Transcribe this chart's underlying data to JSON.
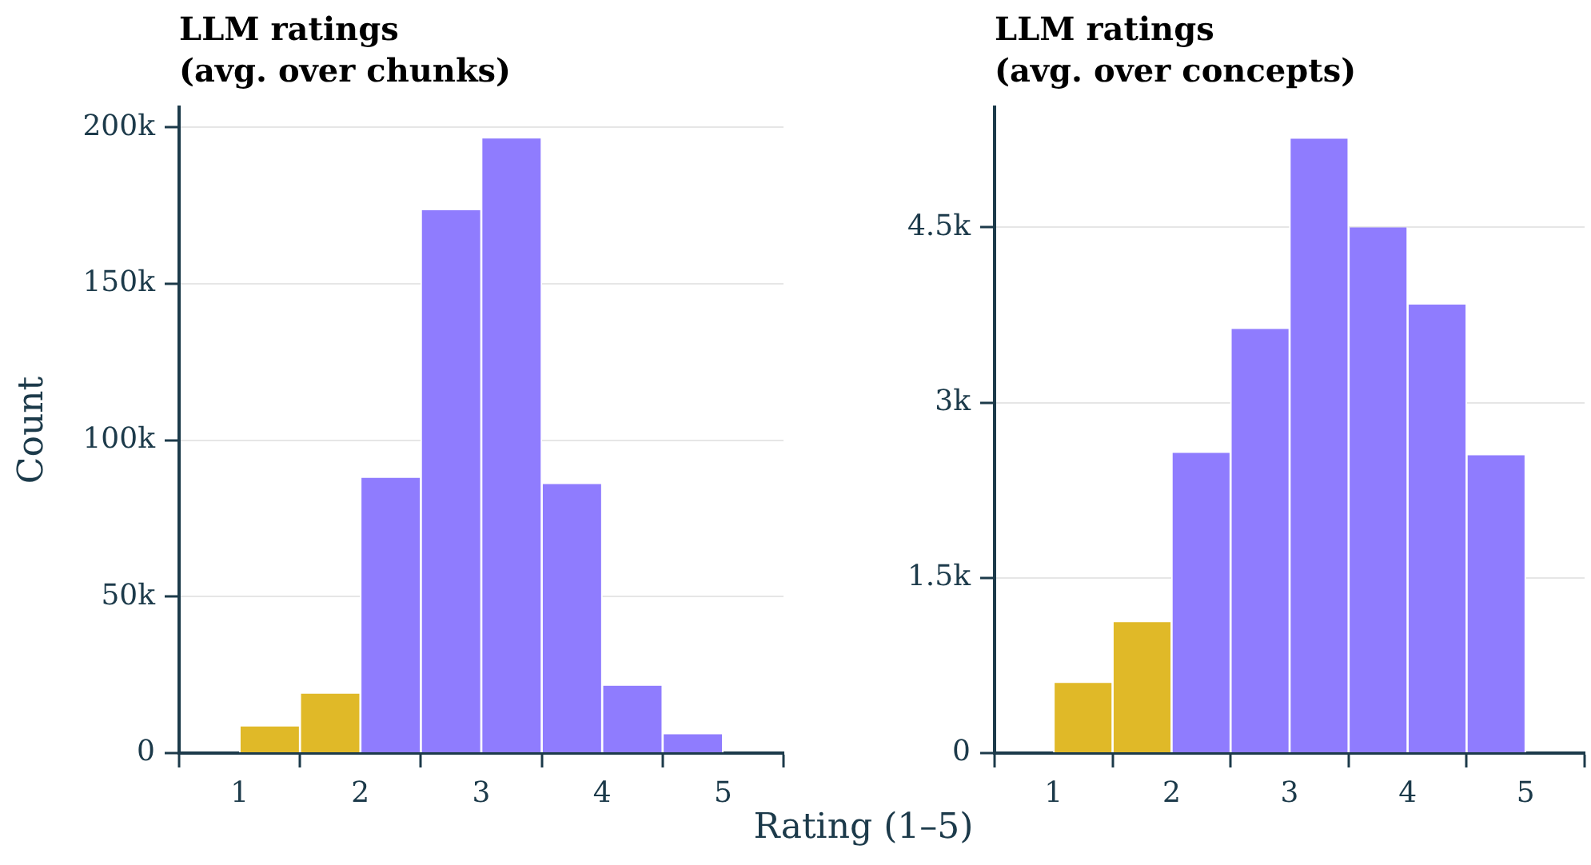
{
  "chart_data": [
    {
      "type": "histogram",
      "title": "LLM ratings\n(avg. over chunks)",
      "xlabel": "Rating (1–5)",
      "ylabel": "Count",
      "bins": [
        1,
        1.5,
        2,
        2.5,
        3,
        3.5,
        4,
        4.5,
        5
      ],
      "values": [
        8500,
        19000,
        88000,
        173500,
        196500,
        86000,
        21500,
        6000
      ],
      "colors": [
        "#e0b928",
        "#e0b928",
        "#8f7cfe",
        "#8f7cfe",
        "#8f7cfe",
        "#8f7cfe",
        "#8f7cfe",
        "#8f7cfe"
      ],
      "xlim": [
        0.5,
        5.5
      ],
      "ylim": [
        0,
        206500
      ],
      "xticks": [
        1,
        2,
        3,
        4,
        5
      ],
      "yticks": [
        0,
        {
          "value": 50000,
          "label": "50k"
        },
        {
          "value": 100000,
          "label": "100k"
        },
        {
          "value": 150000,
          "label": "150k"
        },
        {
          "value": 200000,
          "label": "200k"
        }
      ],
      "grid": "y"
    },
    {
      "type": "histogram",
      "title": "LLM ratings\n(avg. over concepts)",
      "bins": [
        1,
        1.5,
        2,
        2.5,
        3,
        3.5,
        4,
        4.5,
        5
      ],
      "values": [
        600,
        1120,
        2570,
        3630,
        5260,
        4500,
        3840,
        2550
      ],
      "colors": [
        "#e0b928",
        "#e0b928",
        "#8f7cfe",
        "#8f7cfe",
        "#8f7cfe",
        "#8f7cfe",
        "#8f7cfe",
        "#8f7cfe"
      ],
      "xlim": [
        0.5,
        5.5
      ],
      "ylim": [
        0,
        5530
      ],
      "xticks": [
        1,
        2,
        3,
        4,
        5
      ],
      "yticks": [
        0,
        {
          "value": 1500,
          "label": "1.5k"
        },
        {
          "value": 3000,
          "label": "3k"
        },
        {
          "value": 4500,
          "label": "4.5k"
        }
      ],
      "grid": "y"
    }
  ]
}
